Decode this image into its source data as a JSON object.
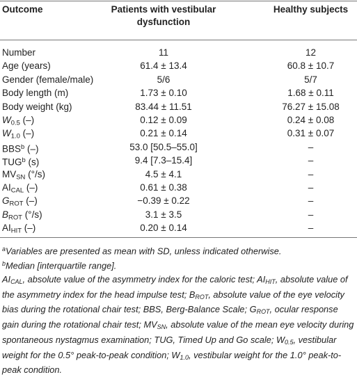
{
  "header": {
    "outcome": "Outcome",
    "patients": "Patients with vestibular dysfunction",
    "healthy": "Healthy subjects"
  },
  "rows": [
    {
      "label": [
        {
          "text": "Number"
        }
      ],
      "patients": "11",
      "healthy": "12"
    },
    {
      "label": [
        {
          "text": "Age (years)"
        }
      ],
      "patients": "61.4 ± 13.4",
      "healthy": "60.8 ± 10.7"
    },
    {
      "label": [
        {
          "text": "Gender (female/male)"
        }
      ],
      "patients": "5/6",
      "healthy": "5/7"
    },
    {
      "label": [
        {
          "text": "Body length (m)"
        }
      ],
      "patients": "1.73 ± 0.10",
      "healthy": "1.68 ± 0.11"
    },
    {
      "label": [
        {
          "text": "Body weight (kg)"
        }
      ],
      "patients": "83.44 ± 11.51",
      "healthy": "76.27 ± 15.08"
    },
    {
      "label": [
        {
          "text": "W",
          "style": "italic"
        },
        {
          "text": "0.5",
          "style": "sub"
        },
        {
          "text": " (–)"
        }
      ],
      "patients": "0.12 ± 0.09",
      "healthy": "0.24 ± 0.08"
    },
    {
      "label": [
        {
          "text": "W",
          "style": "italic"
        },
        {
          "text": "1.0",
          "style": "sub"
        },
        {
          "text": " (–)"
        }
      ],
      "patients": "0.21 ± 0.14",
      "healthy": "0.31 ± 0.07"
    },
    {
      "label": [
        {
          "text": "BBS"
        },
        {
          "text": "b",
          "style": "sup"
        },
        {
          "text": " (–)"
        }
      ],
      "patients": "53.0 [50.5–55.0]",
      "healthy": "–"
    },
    {
      "label": [
        {
          "text": "TUG"
        },
        {
          "text": "b",
          "style": "sup"
        },
        {
          "text": " (s)"
        }
      ],
      "patients": "9.4 [7.3–15.4]",
      "healthy": "–"
    },
    {
      "label": [
        {
          "text": "MV"
        },
        {
          "text": "SN",
          "style": "sub"
        },
        {
          "text": " (°/s)"
        }
      ],
      "patients": "4.5 ± 4.1",
      "healthy": "–"
    },
    {
      "label": [
        {
          "text": "AI"
        },
        {
          "text": "CAL",
          "style": "sub"
        },
        {
          "text": " (–)"
        }
      ],
      "patients": "0.61 ± 0.38",
      "healthy": "–"
    },
    {
      "label": [
        {
          "text": "G",
          "style": "italic"
        },
        {
          "text": "ROT",
          "style": "sub"
        },
        {
          "text": " (–)"
        }
      ],
      "patients": "−0.39 ± 0.22",
      "healthy": "–"
    },
    {
      "label": [
        {
          "text": "B",
          "style": "italic"
        },
        {
          "text": "ROT",
          "style": "sub"
        },
        {
          "text": " (°/s)"
        }
      ],
      "patients": "3.1 ± 3.5",
      "healthy": "–"
    },
    {
      "label": [
        {
          "text": "AI"
        },
        {
          "text": "HIT",
          "style": "sub"
        },
        {
          "text": " (–)"
        }
      ],
      "patients": "0.20 ± 0.14",
      "healthy": "–"
    }
  ],
  "footnotes": [
    [
      {
        "text": "a",
        "style": "sup"
      },
      {
        "text": "Variables are presented as mean with SD, unless indicated otherwise."
      }
    ],
    [
      {
        "text": "b",
        "style": "sup"
      },
      {
        "text": "Median [interquartile range]."
      }
    ],
    [
      {
        "text": "AI"
      },
      {
        "text": "CAL",
        "style": "sub"
      },
      {
        "text": ", absolute value of the asymmetry index for the caloric test; AI"
      },
      {
        "text": "HIT",
        "style": "sub"
      },
      {
        "text": ", absolute value of the asymmetry index for the head impulse test; B"
      },
      {
        "text": "ROT",
        "style": "sub"
      },
      {
        "text": ", absolute value of the eye velocity bias during the rotational chair test; BBS, Berg-Balance Scale; G"
      },
      {
        "text": "ROT",
        "style": "sub"
      },
      {
        "text": ", ocular response gain during the rotational chair test; MV"
      },
      {
        "text": "SN",
        "style": "sub"
      },
      {
        "text": ", absolute value of the mean eye velocity during spontaneous nystagmus examination; TUG, Timed Up and Go scale; W"
      },
      {
        "text": "0.5",
        "style": "sub"
      },
      {
        "text": ", vestibular weight for the 0.5° peak-to-peak condition; W"
      },
      {
        "text": "1.0",
        "style": "sub"
      },
      {
        "text": ", vestibular weight for the 1.0° peak-to-peak condition."
      }
    ]
  ]
}
